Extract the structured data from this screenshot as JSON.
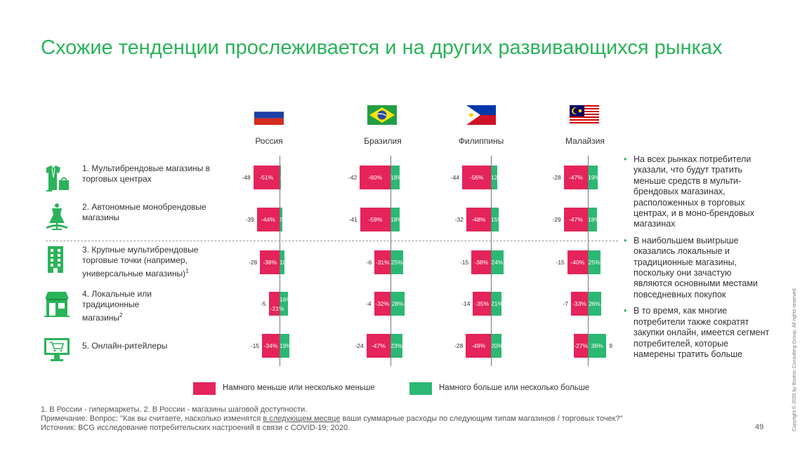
{
  "title": "Схожие тенденции прослеживается и на других развивающихся рынках",
  "chart_data": {
    "type": "bar",
    "subtype": "diverging-stacked-bar",
    "categories": [
      {
        "label": "1. Мультибрендовые магазины в торговых центрах",
        "sup": "",
        "icon": "clothing-store-icon"
      },
      {
        "label": "2. Автономные монобрендовые магазины",
        "sup": "",
        "icon": "mannequin-icon"
      },
      {
        "label": "3. Крупные мультибрендовые торговые точки (например, универсальные магазины)",
        "sup": "1",
        "icon": "department-store-icon"
      },
      {
        "label": "4. Локальные или традиционные магазины",
        "sup": "2",
        "icon": "local-shop-icon"
      },
      {
        "label": "5. Онлайн-ритейлеры",
        "sup": "",
        "icon": "online-cart-icon"
      }
    ],
    "countries": [
      {
        "name": "Россия",
        "flag": "russia-flag-icon",
        "less": [
          -51,
          -44,
          -38,
          -21,
          -34
        ],
        "more": [
          3,
          5,
          10,
          16,
          19
        ],
        "net": [
          -48,
          -39,
          -28,
          -5,
          -15
        ]
      },
      {
        "name": "Бразилия",
        "flag": "brazil-flag-icon",
        "less": [
          -60,
          -59,
          -31,
          -32,
          -47
        ],
        "more": [
          18,
          18,
          25,
          28,
          23
        ],
        "net": [
          -42,
          -41,
          -6,
          -4,
          -24
        ]
      },
      {
        "name": "Филиппины",
        "flag": "philippines-flag-icon",
        "less": [
          -56,
          -48,
          -38,
          -35,
          -49
        ],
        "more": [
          12,
          15,
          24,
          21,
          20
        ],
        "net": [
          -44,
          -32,
          -15,
          -14,
          -28
        ]
      },
      {
        "name": "Малайзия",
        "flag": "malaysia-flag-icon",
        "less": [
          -47,
          -47,
          -40,
          -33,
          -27
        ],
        "more": [
          19,
          18,
          25,
          26,
          36
        ],
        "net": [
          -28,
          -29,
          -15,
          -7,
          9
        ]
      }
    ],
    "legend": [
      {
        "label": "Намного меньше или несколько меньше",
        "color": "#e4245a"
      },
      {
        "label": "Намного больше или несколько больше",
        "color": "#2bb873"
      }
    ],
    "legend_placement": "bottom"
  },
  "bullets": [
    "На всех рынках потребители указали, что будут тратить меньше средств в мульти-брендовых магазинах, расположенных в торговых центрах, и в моно-брендовых магазинах",
    "В наибольшем выигрыше оказались локальные и традиционные магазины, поскольку они зачастую являются основными местами повседневных покупок",
    "В то время, как многие потребители также сократят закупки онлайн, имеется сегмент потребителей, которые намерены тратить больше"
  ],
  "footnotes": {
    "line1": "1. В России - гипермаркеты. 2. В России - магазины шаговой доступности.",
    "line2_prefix": "Примечание: Вопрос: \"Как вы считаете, насколько изменятся ",
    "line2_underlined": "в следующем месяце",
    "line2_suffix": " ваши суммарные расходы по следующим типам магазинов / торговых точек?\"",
    "line3": "Источник: BCG исследование потребительских настроений в связи с COVID-19; 2020."
  },
  "page_number": "49",
  "copyright": "Copyright © 2020 by Boston Consulting Group. All rights reserved.",
  "colors": {
    "accent": "#2bb35a",
    "negative": "#e4245a",
    "positive": "#2bb873"
  }
}
